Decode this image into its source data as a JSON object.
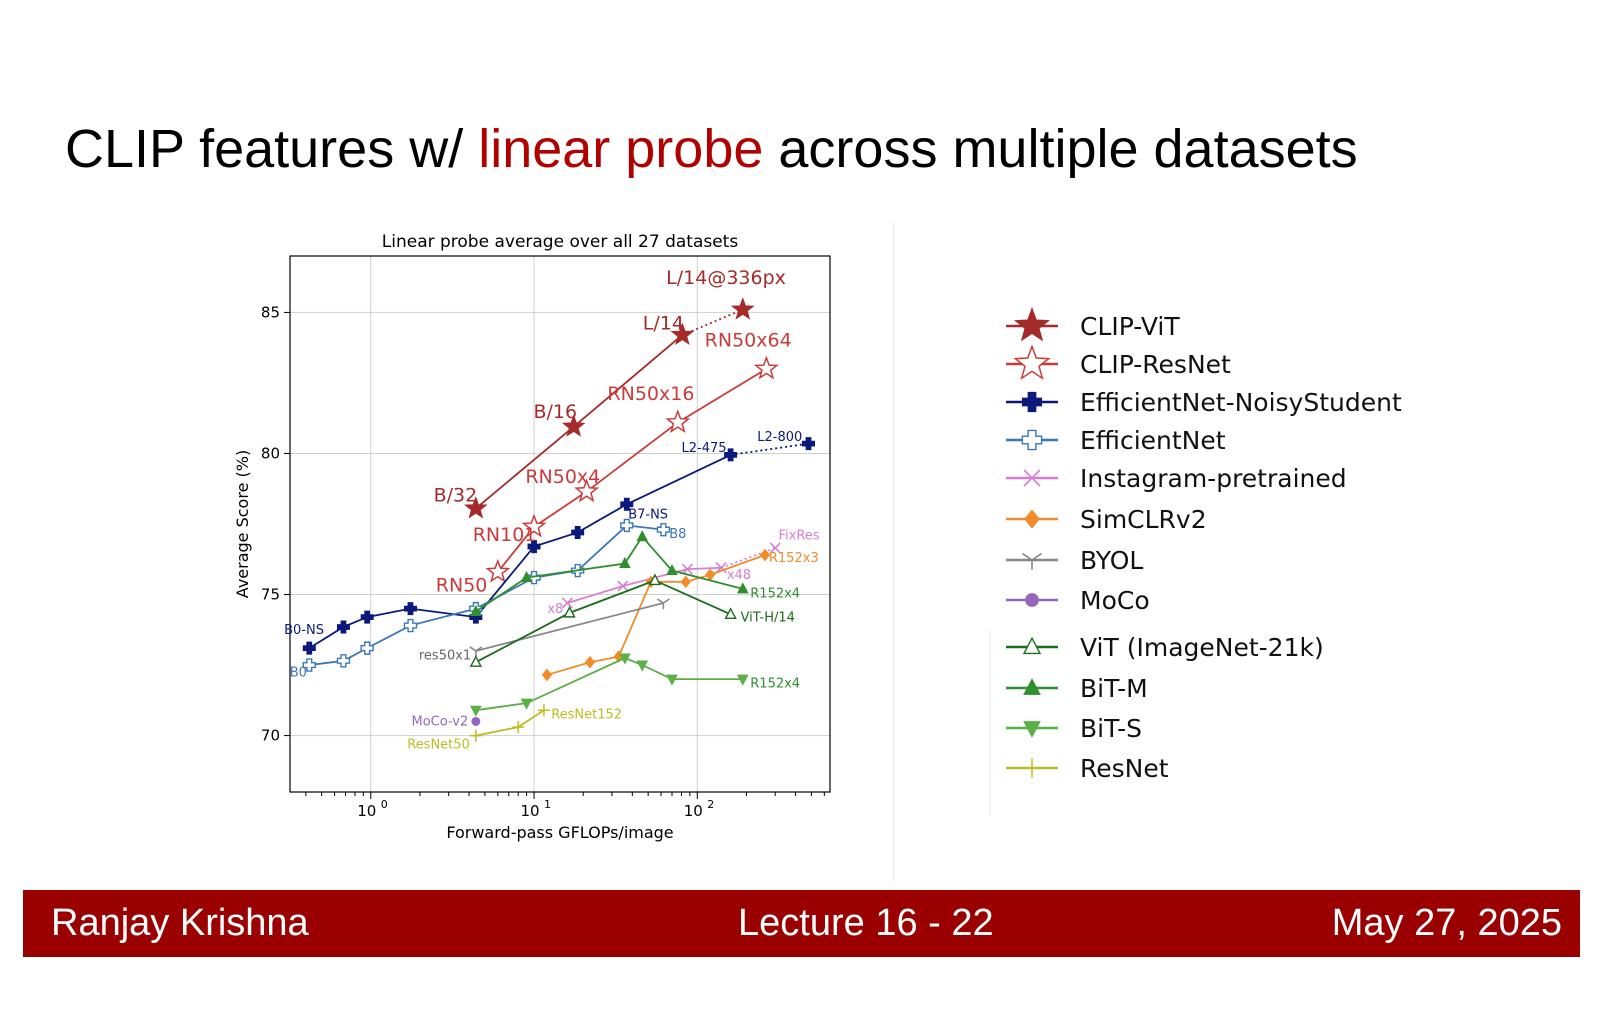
{
  "slide": {
    "title_pre": "CLIP features w/ ",
    "title_highlight": "linear probe",
    "title_post": " across multiple datasets",
    "highlight_color": "#b00000"
  },
  "footer": {
    "author": "Ranjay Krishna",
    "lecture": "Lecture 16 -  22",
    "date": "May 27, 2025",
    "color": "#9b0000"
  },
  "chart_data": {
    "type": "line",
    "title": "Linear probe average over all 27 datasets",
    "xlabel": "Forward-pass GFLOPs/image",
    "ylabel": "Average Score (%)",
    "x_scale": "log",
    "x_ticks": [
      "10",
      "10",
      "10"
    ],
    "x_tick_exponents": [
      "0",
      "1",
      "2"
    ],
    "x_tick_values": [
      1,
      10,
      100
    ],
    "y_ticks": [
      "70",
      "75",
      "80",
      "85"
    ],
    "y_tick_values": [
      70,
      75,
      80,
      85
    ],
    "xlim": [
      0.32,
      650
    ],
    "ylim": [
      68.0,
      87.0
    ],
    "grid": true,
    "legend_position": "right",
    "series": [
      {
        "name": "CLIP-ViT",
        "color": "#a52a2a",
        "marker": "star-filled",
        "points": [
          [
            4.4,
            78.05
          ],
          [
            17.5,
            80.95
          ],
          [
            81,
            84.2
          ]
        ],
        "dotted_extension": [
          [
            81,
            84.2
          ],
          [
            190,
            85.1
          ]
        ],
        "extra_points": [
          [
            190,
            85.1
          ]
        ]
      },
      {
        "name": "CLIP-ResNet",
        "color": "#cc3b3b",
        "marker": "star-open",
        "points": [
          [
            6.0,
            75.8
          ],
          [
            10,
            77.4
          ],
          [
            21,
            78.65
          ],
          [
            76,
            81.1
          ],
          [
            265,
            83.0
          ]
        ]
      },
      {
        "name": "EfficientNet-NoisyStudent",
        "color": "#0b1a7a",
        "marker": "plus-filled",
        "points": [
          [
            0.42,
            73.1
          ],
          [
            0.68,
            73.85
          ],
          [
            0.95,
            74.2
          ],
          [
            1.75,
            74.5
          ],
          [
            4.4,
            74.2
          ],
          [
            10,
            76.7
          ],
          [
            18.5,
            77.2
          ],
          [
            37,
            78.2
          ],
          [
            160,
            79.95
          ]
        ],
        "dotted_extension": [
          [
            160,
            79.95
          ],
          [
            480,
            80.35
          ]
        ],
        "extra_points": [
          [
            480,
            80.35
          ]
        ]
      },
      {
        "name": "EfficientNet",
        "color": "#3c78b4",
        "marker": "plus-open",
        "points": [
          [
            0.42,
            72.5
          ],
          [
            0.68,
            72.65
          ],
          [
            0.95,
            73.1
          ],
          [
            1.75,
            73.9
          ],
          [
            4.4,
            74.5
          ],
          [
            10,
            75.6
          ],
          [
            18.5,
            75.85
          ],
          [
            37,
            77.45
          ],
          [
            62,
            77.3
          ]
        ]
      },
      {
        "name": "Instagram-pretrained",
        "color": "#d67fd2",
        "marker": "x",
        "points": [
          [
            16,
            74.7
          ],
          [
            35,
            75.3
          ],
          [
            87,
            75.9
          ],
          [
            140,
            75.95
          ]
        ],
        "dotted_extension": [
          [
            140,
            75.95
          ],
          [
            300,
            76.65
          ]
        ],
        "extra_points": [
          [
            300,
            76.65
          ]
        ]
      },
      {
        "name": "SimCLRv2",
        "color": "#f28b2a",
        "marker": "diamond",
        "points": [
          [
            12,
            72.15
          ],
          [
            22,
            72.6
          ],
          [
            33,
            72.8
          ],
          [
            52,
            75.45
          ],
          [
            85,
            75.45
          ],
          [
            120,
            75.7
          ],
          [
            260,
            76.4
          ]
        ],
        "dotted_extension": [],
        "extra_points": []
      },
      {
        "name": "BYOL",
        "color": "#888888",
        "marker": "tri-y",
        "points": [
          [
            4.4,
            73.0
          ],
          [
            62,
            74.7
          ]
        ]
      },
      {
        "name": "MoCo",
        "color": "#9467bd",
        "marker": "circle",
        "points": [
          [
            4.4,
            70.5
          ]
        ]
      },
      {
        "name": "ViT (ImageNet-21k)",
        "color": "#1d6b1d",
        "marker": "triangle-open",
        "points": [
          [
            4.4,
            72.6
          ],
          [
            16.5,
            74.35
          ],
          [
            55,
            75.5
          ],
          [
            160,
            74.3
          ]
        ]
      },
      {
        "name": "BiT-M",
        "color": "#2f8f2f",
        "marker": "triangle-filled",
        "points": [
          [
            4.4,
            74.4
          ],
          [
            9,
            75.6
          ],
          [
            36,
            76.1
          ],
          [
            46,
            77.05
          ],
          [
            70,
            75.85
          ],
          [
            190,
            75.2
          ]
        ]
      },
      {
        "name": "BiT-S",
        "color": "#5aaf46",
        "marker": "triangle-down",
        "points": [
          [
            4.4,
            70.9
          ],
          [
            9,
            71.15
          ],
          [
            36,
            72.75
          ],
          [
            46,
            72.5
          ],
          [
            70,
            72.0
          ],
          [
            190,
            72.0
          ]
        ]
      },
      {
        "name": "ResNet",
        "color": "#bcbd22",
        "marker": "plus-thin",
        "points": [
          [
            4.4,
            70.0
          ],
          [
            8,
            70.3
          ],
          [
            11.5,
            70.9
          ]
        ]
      }
    ],
    "annotations": [
      {
        "text": "L/14@336px",
        "x": 150,
        "y": 86.0,
        "color": "#a52a2a",
        "size": "large"
      },
      {
        "text": "L/14",
        "x": 62,
        "y": 84.4,
        "color": "#a52a2a",
        "size": "large"
      },
      {
        "text": "B/16",
        "x": 13.5,
        "y": 81.25,
        "color": "#a52a2a",
        "size": "large"
      },
      {
        "text": "B/32",
        "x": 3.3,
        "y": 78.3,
        "color": "#a52a2a",
        "size": "large"
      },
      {
        "text": "RN50x64",
        "x": 205,
        "y": 83.8,
        "color": "#cc3b3b",
        "size": "large"
      },
      {
        "text": "RN50x16",
        "x": 52,
        "y": 81.9,
        "color": "#cc3b3b",
        "size": "large"
      },
      {
        "text": "RN50x4",
        "x": 15,
        "y": 78.95,
        "color": "#cc3b3b",
        "size": "large"
      },
      {
        "text": "RN101",
        "x": 6.6,
        "y": 76.9,
        "color": "#cc3b3b",
        "size": "large"
      },
      {
        "text": "RN50",
        "x": 3.6,
        "y": 75.1,
        "color": "#cc3b3b",
        "size": "large"
      },
      {
        "text": "L2-800",
        "x": 320,
        "y": 80.45,
        "color": "#0b1a7a",
        "size": "small"
      },
      {
        "text": "L2-475",
        "x": 110,
        "y": 80.05,
        "color": "#0b1a7a",
        "size": "small"
      },
      {
        "text": "B7-NS",
        "x": 50,
        "y": 77.7,
        "color": "#0b1a7a",
        "size": "small"
      },
      {
        "text": "B0-NS",
        "x": 0.39,
        "y": 73.6,
        "color": "#0b1a7a",
        "size": "small"
      },
      {
        "text": "B8",
        "x": 76,
        "y": 77.0,
        "color": "#3c78b4",
        "size": "small"
      },
      {
        "text": "B0",
        "x": 0.36,
        "y": 72.1,
        "color": "#3c78b4",
        "size": "small"
      },
      {
        "text": "FixRes",
        "x": 420,
        "y": 76.95,
        "color": "#d67fd2",
        "size": "small"
      },
      {
        "text": "x48",
        "x": 180,
        "y": 75.55,
        "color": "#d67fd2",
        "size": "small"
      },
      {
        "text": "x8",
        "x": 13.5,
        "y": 74.35,
        "color": "#d67fd2",
        "size": "small"
      },
      {
        "text": "R152x3",
        "x": 390,
        "y": 76.15,
        "color": "#f28b2a",
        "size": "small"
      },
      {
        "text": "R152x4",
        "x": 300,
        "y": 74.9,
        "color": "#2f8f2f",
        "size": "small"
      },
      {
        "text": "ViT-H/14",
        "x": 270,
        "y": 74.05,
        "color": "#1d6b1d",
        "size": "small"
      },
      {
        "text": "R152x4",
        "x": 300,
        "y": 71.7,
        "color": "#2f8f2f",
        "size": "small"
      },
      {
        "text": "res50x1",
        "x": 2.85,
        "y": 72.7,
        "color": "#666666",
        "size": "small"
      },
      {
        "text": "MoCo-v2",
        "x": 2.65,
        "y": 70.35,
        "color": "#9467bd",
        "size": "small"
      },
      {
        "text": "ResNet152",
        "x": 21,
        "y": 70.6,
        "color": "#bcbd22",
        "size": "small"
      },
      {
        "text": "ResNet50",
        "x": 2.6,
        "y": 69.55,
        "color": "#bcbd22",
        "size": "small"
      }
    ]
  }
}
